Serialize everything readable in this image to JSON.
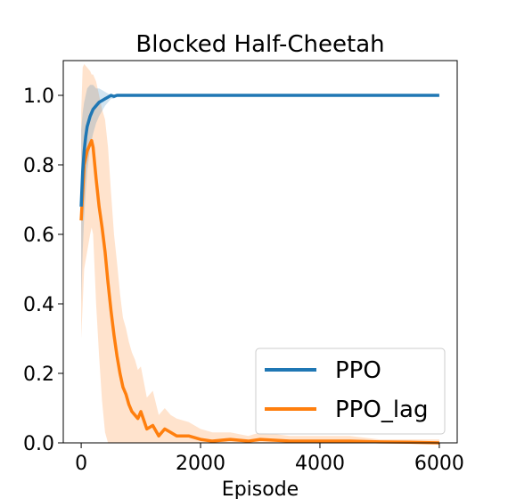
{
  "chart_data": {
    "type": "line",
    "title": "Blocked Half-Cheetah",
    "xlabel": "Episode",
    "ylabel": "",
    "xlim": [
      -300,
      6300
    ],
    "ylim": [
      0.0,
      1.1
    ],
    "xticks": [
      0,
      2000,
      4000,
      6000
    ],
    "yticks": [
      0.0,
      0.2,
      0.4,
      0.6,
      0.8,
      1.0
    ],
    "xtick_labels": [
      "0",
      "2000",
      "4000",
      "6000"
    ],
    "ytick_labels": [
      "0.0",
      "0.2",
      "0.4",
      "0.6",
      "0.8",
      "1.0"
    ],
    "grid": false,
    "legend_position": "lower-right",
    "series": [
      {
        "name": "PPO",
        "color": "#1f77b4",
        "x": [
          0,
          25,
          50,
          75,
          100,
          150,
          200,
          250,
          300,
          350,
          400,
          450,
          500,
          550,
          600,
          700,
          800,
          1000,
          2000,
          3000,
          4000,
          5000,
          6000
        ],
        "y": [
          0.68,
          0.78,
          0.84,
          0.88,
          0.91,
          0.94,
          0.96,
          0.97,
          0.98,
          0.985,
          0.99,
          0.995,
          1.0,
          0.997,
          1.0,
          1.0,
          1.0,
          1.0,
          1.0,
          1.0,
          1.0,
          1.0,
          1.0
        ],
        "band_lower": [
          0.4,
          0.55,
          0.65,
          0.72,
          0.78,
          0.85,
          0.89,
          0.92,
          0.94,
          0.955,
          0.97,
          0.98,
          0.99,
          0.99,
          1.0,
          1.0,
          1.0,
          1.0,
          1.0,
          1.0,
          1.0,
          1.0,
          1.0
        ],
        "band_upper": [
          0.9,
          0.95,
          0.98,
          1.0,
          1.02,
          1.03,
          1.03,
          1.02,
          1.02,
          1.015,
          1.01,
          1.005,
          1.0,
          1.0,
          1.0,
          1.0,
          1.0,
          1.0,
          1.0,
          1.0,
          1.0,
          1.0,
          1.0
        ]
      },
      {
        "name": "PPO_lag",
        "color": "#ff7f0e",
        "band_color": "#ffe0c8",
        "x": [
          0,
          25,
          50,
          100,
          150,
          175,
          200,
          250,
          300,
          350,
          400,
          450,
          500,
          550,
          600,
          650,
          700,
          750,
          800,
          850,
          900,
          950,
          1000,
          1100,
          1200,
          1300,
          1400,
          1500,
          1600,
          1800,
          2000,
          2200,
          2500,
          2800,
          3000,
          3500,
          4000,
          4500,
          5000,
          5500,
          6000
        ],
        "y": [
          0.64,
          0.72,
          0.8,
          0.84,
          0.86,
          0.87,
          0.85,
          0.76,
          0.68,
          0.62,
          0.55,
          0.46,
          0.38,
          0.31,
          0.25,
          0.2,
          0.16,
          0.14,
          0.11,
          0.09,
          0.08,
          0.07,
          0.09,
          0.04,
          0.05,
          0.02,
          0.04,
          0.03,
          0.02,
          0.02,
          0.01,
          0.005,
          0.01,
          0.005,
          0.01,
          0.005,
          0.005,
          0.005,
          0.003,
          0.002,
          0.0
        ],
        "band_lower": [
          0.3,
          0.4,
          0.5,
          0.55,
          0.6,
          0.62,
          0.6,
          0.4,
          0.25,
          0.12,
          0.03,
          0.0,
          0.0,
          0.0,
          0.0,
          0.0,
          0.0,
          0.0,
          0.0,
          0.0,
          0.0,
          0.0,
          0.0,
          0.0,
          0.0,
          0.0,
          0.0,
          0.0,
          0.0,
          0.0,
          0.0,
          0.0,
          0.0,
          0.0,
          0.0,
          0.0,
          0.0,
          0.0,
          0.0,
          0.0,
          0.0
        ],
        "band_upper": [
          0.95,
          1.08,
          1.09,
          1.08,
          1.07,
          1.06,
          1.06,
          1.04,
          1.0,
          0.96,
          0.93,
          0.85,
          0.72,
          0.6,
          0.52,
          0.43,
          0.36,
          0.33,
          0.29,
          0.26,
          0.24,
          0.21,
          0.22,
          0.13,
          0.15,
          0.08,
          0.1,
          0.08,
          0.07,
          0.06,
          0.04,
          0.03,
          0.03,
          0.02,
          0.03,
          0.02,
          0.02,
          0.02,
          0.01,
          0.01,
          0.01
        ]
      }
    ]
  }
}
